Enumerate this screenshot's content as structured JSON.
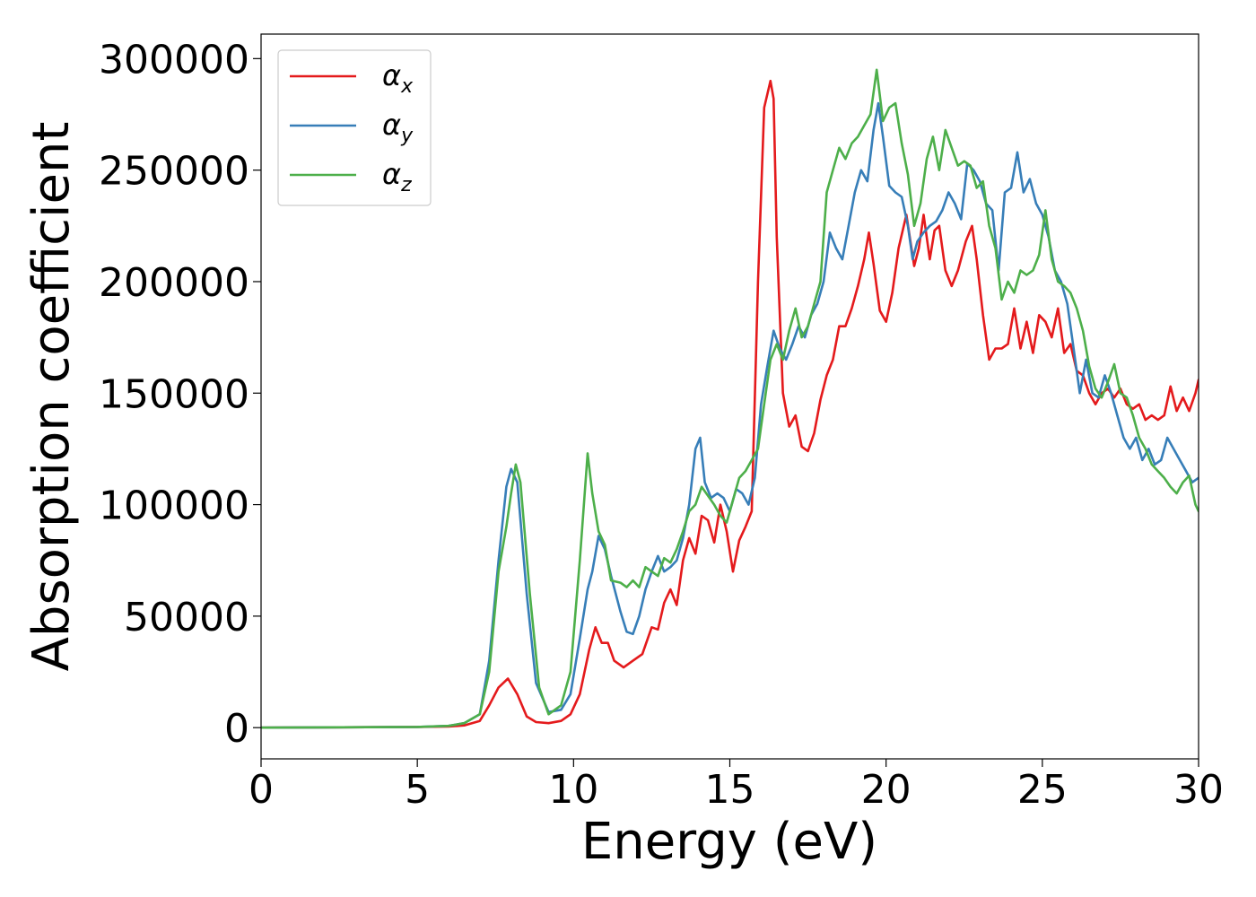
{
  "chart_data": {
    "type": "line",
    "title": "",
    "xlabel": "Energy (eV)",
    "ylabel": "Absorption coefficient",
    "xlim": [
      0,
      30
    ],
    "ylim": [
      -14000,
      311000
    ],
    "xticks": [
      "0",
      "5",
      "10",
      "15",
      "20",
      "25",
      "30"
    ],
    "yticks": [
      "0",
      "50000",
      "100000",
      "150000",
      "200000",
      "250000",
      "300000"
    ],
    "grid": false,
    "legend_position": "top-left",
    "series": [
      {
        "name": "α_x",
        "symbol": "α",
        "subscript": "x",
        "color": "#e41a1c",
        "x": [
          0,
          5,
          6,
          6.5,
          7,
          7.3,
          7.6,
          7.9,
          8.2,
          8.5,
          8.8,
          9.2,
          9.6,
          9.9,
          10.2,
          10.5,
          10.7,
          10.9,
          11.1,
          11.3,
          11.6,
          11.9,
          12.2,
          12.5,
          12.7,
          12.9,
          13.1,
          13.3,
          13.5,
          13.7,
          13.9,
          14.1,
          14.3,
          14.5,
          14.7,
          14.9,
          15.1,
          15.3,
          15.5,
          15.7,
          15.9,
          16.1,
          16.3,
          16.4,
          16.5,
          16.7,
          16.9,
          17.1,
          17.3,
          17.5,
          17.7,
          17.9,
          18.1,
          18.3,
          18.5,
          18.7,
          18.9,
          19.1,
          19.3,
          19.45,
          19.6,
          19.8,
          20.0,
          20.2,
          20.4,
          20.65,
          20.9,
          21.05,
          21.2,
          21.4,
          21.55,
          21.7,
          21.9,
          22.1,
          22.3,
          22.55,
          22.75,
          22.9,
          23.1,
          23.3,
          23.5,
          23.7,
          23.9,
          24.1,
          24.3,
          24.5,
          24.7,
          24.9,
          25.1,
          25.3,
          25.5,
          25.7,
          25.9,
          26.1,
          26.3,
          26.5,
          26.7,
          26.9,
          27.1,
          27.3,
          27.5,
          27.7,
          27.9,
          28.1,
          28.3,
          28.5,
          28.7,
          28.9,
          29.1,
          29.3,
          29.5,
          29.7,
          29.9,
          30
        ],
        "y": [
          0,
          300,
          500,
          1000,
          3000,
          10000,
          18000,
          22000,
          15000,
          5000,
          2500,
          2000,
          3000,
          6000,
          15000,
          35000,
          45000,
          38000,
          38000,
          30000,
          27000,
          30000,
          33000,
          45000,
          44000,
          56000,
          62000,
          55000,
          75000,
          85000,
          78000,
          95000,
          93000,
          83000,
          100000,
          88000,
          70000,
          84000,
          90000,
          97000,
          200000,
          278000,
          290000,
          282000,
          220000,
          150000,
          135000,
          140000,
          126000,
          124000,
          132000,
          147000,
          158000,
          165000,
          180000,
          180000,
          188000,
          198000,
          210000,
          222000,
          208000,
          187000,
          182000,
          195000,
          215000,
          230000,
          207000,
          215000,
          230000,
          210000,
          223000,
          225000,
          205000,
          198000,
          205000,
          218000,
          225000,
          210000,
          185000,
          165000,
          170000,
          170000,
          172000,
          188000,
          170000,
          182000,
          168000,
          185000,
          182000,
          175000,
          188000,
          168000,
          172000,
          160000,
          158000,
          150000,
          145000,
          150000,
          152000,
          148000,
          152000,
          145000,
          143000,
          145000,
          138000,
          140000,
          138000,
          140000,
          153000,
          142000,
          148000,
          142000,
          150000,
          156000
        ]
      },
      {
        "name": "α_y",
        "symbol": "α",
        "subscript": "y",
        "color": "#377eb8",
        "x": [
          0,
          5,
          6,
          6.5,
          7,
          7.3,
          7.6,
          7.85,
          8.0,
          8.2,
          8.5,
          8.8,
          9.2,
          9.6,
          9.9,
          10.2,
          10.45,
          10.6,
          10.8,
          11.0,
          11.2,
          11.5,
          11.7,
          11.9,
          12.1,
          12.3,
          12.5,
          12.7,
          12.9,
          13.1,
          13.3,
          13.5,
          13.7,
          13.9,
          14.05,
          14.2,
          14.4,
          14.6,
          14.8,
          15.0,
          15.2,
          15.4,
          15.6,
          15.8,
          16.0,
          16.2,
          16.4,
          16.6,
          16.8,
          17.0,
          17.2,
          17.4,
          17.6,
          17.8,
          18.0,
          18.2,
          18.4,
          18.6,
          18.8,
          19.0,
          19.2,
          19.4,
          19.6,
          19.75,
          19.9,
          20.1,
          20.3,
          20.5,
          20.7,
          20.85,
          21.0,
          21.2,
          21.4,
          21.6,
          21.8,
          22.0,
          22.2,
          22.4,
          22.6,
          22.8,
          23.0,
          23.2,
          23.4,
          23.6,
          23.8,
          24.0,
          24.2,
          24.4,
          24.6,
          24.8,
          25.0,
          25.2,
          25.4,
          25.6,
          25.8,
          26.0,
          26.2,
          26.4,
          26.6,
          26.8,
          27.0,
          27.2,
          27.4,
          27.6,
          27.8,
          28.0,
          28.2,
          28.4,
          28.6,
          28.8,
          29.0,
          29.2,
          29.4,
          29.6,
          29.8,
          30
        ],
        "y": [
          0,
          300,
          800,
          2000,
          6000,
          30000,
          75000,
          108000,
          116000,
          110000,
          60000,
          20000,
          7000,
          8000,
          15000,
          40000,
          62000,
          70000,
          86000,
          80000,
          68000,
          52000,
          43000,
          42000,
          50000,
          62000,
          70000,
          77000,
          70000,
          72000,
          75000,
          85000,
          100000,
          125000,
          130000,
          110000,
          103000,
          105000,
          103000,
          97000,
          107000,
          105000,
          100000,
          112000,
          145000,
          162000,
          178000,
          170000,
          165000,
          172000,
          180000,
          175000,
          185000,
          190000,
          200000,
          222000,
          215000,
          210000,
          225000,
          240000,
          250000,
          245000,
          268000,
          280000,
          265000,
          243000,
          240000,
          238000,
          225000,
          210000,
          218000,
          222000,
          225000,
          227000,
          232000,
          240000,
          235000,
          228000,
          253000,
          250000,
          245000,
          235000,
          232000,
          205000,
          240000,
          242000,
          258000,
          240000,
          246000,
          235000,
          230000,
          220000,
          205000,
          200000,
          190000,
          170000,
          150000,
          165000,
          150000,
          148000,
          158000,
          150000,
          140000,
          130000,
          125000,
          130000,
          120000,
          125000,
          118000,
          120000,
          130000,
          125000,
          120000,
          115000,
          110000,
          112000
        ]
      },
      {
        "name": "α_z",
        "symbol": "α",
        "subscript": "z",
        "color": "#4daf4a",
        "x": [
          0,
          5,
          6,
          6.5,
          7,
          7.3,
          7.6,
          7.85,
          8.0,
          8.15,
          8.3,
          8.6,
          8.9,
          9.2,
          9.6,
          9.9,
          10.2,
          10.45,
          10.6,
          10.8,
          11.0,
          11.2,
          11.5,
          11.7,
          11.9,
          12.1,
          12.3,
          12.5,
          12.7,
          12.9,
          13.1,
          13.3,
          13.5,
          13.7,
          13.9,
          14.1,
          14.3,
          14.5,
          14.7,
          14.9,
          15.1,
          15.3,
          15.5,
          15.7,
          15.9,
          16.1,
          16.3,
          16.5,
          16.7,
          16.9,
          17.1,
          17.3,
          17.5,
          17.7,
          17.9,
          18.1,
          18.3,
          18.5,
          18.7,
          18.9,
          19.1,
          19.3,
          19.5,
          19.7,
          19.9,
          20.1,
          20.3,
          20.5,
          20.7,
          20.9,
          21.1,
          21.3,
          21.5,
          21.7,
          21.9,
          22.1,
          22.3,
          22.5,
          22.7,
          22.9,
          23.1,
          23.3,
          23.5,
          23.7,
          23.9,
          24.1,
          24.3,
          24.5,
          24.7,
          24.9,
          25.1,
          25.3,
          25.5,
          25.7,
          25.9,
          26.1,
          26.3,
          26.5,
          26.7,
          26.9,
          27.1,
          27.3,
          27.5,
          27.7,
          27.9,
          28.1,
          28.3,
          28.5,
          28.7,
          28.9,
          29.1,
          29.3,
          29.5,
          29.7,
          29.9,
          30
        ],
        "y": [
          0,
          300,
          800,
          2000,
          6000,
          25000,
          70000,
          90000,
          105000,
          118000,
          110000,
          60000,
          18000,
          6000,
          10000,
          25000,
          75000,
          123000,
          105000,
          88000,
          82000,
          66000,
          65000,
          63000,
          66000,
          63000,
          72000,
          70000,
          68000,
          76000,
          74000,
          80000,
          88000,
          97000,
          100000,
          108000,
          104000,
          100000,
          95000,
          92000,
          102000,
          112000,
          115000,
          120000,
          125000,
          145000,
          165000,
          172000,
          165000,
          178000,
          188000,
          175000,
          180000,
          190000,
          200000,
          240000,
          250000,
          260000,
          255000,
          262000,
          265000,
          270000,
          275000,
          295000,
          272000,
          278000,
          280000,
          262000,
          248000,
          225000,
          235000,
          255000,
          265000,
          250000,
          268000,
          260000,
          252000,
          254000,
          252000,
          242000,
          245000,
          225000,
          215000,
          192000,
          200000,
          195000,
          205000,
          203000,
          205000,
          212000,
          232000,
          210000,
          200000,
          198000,
          195000,
          188000,
          178000,
          162000,
          152000,
          148000,
          155000,
          163000,
          150000,
          148000,
          140000,
          130000,
          125000,
          118000,
          115000,
          112000,
          108000,
          105000,
          110000,
          113000,
          100000,
          97000
        ]
      }
    ]
  }
}
